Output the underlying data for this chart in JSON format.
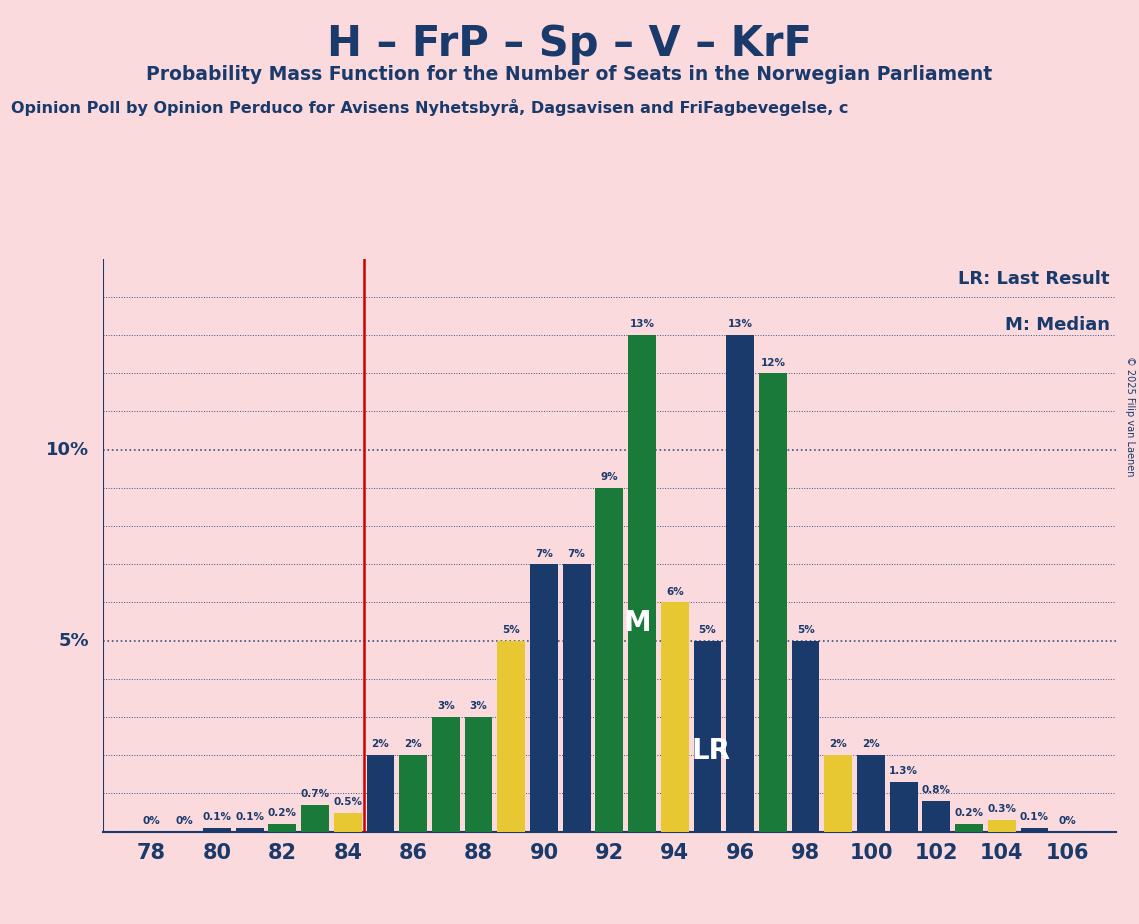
{
  "title": "H – FrP – Sp – V – KrF",
  "subtitle": "Probability Mass Function for the Number of Seats in the Norwegian Parliament",
  "source": "Opinion Poll by Opinion Perduco for Avisens Nyhetsbyrå, Dagsavisen and FriFagbevegelse, c",
  "copyright": "© 2025 Filip van Laenen",
  "background_color": "#FADADD",
  "bar_color_blue": "#1a3a6b",
  "bar_color_green": "#1a7a3a",
  "bar_color_yellow": "#e8c832",
  "lr_line_color": "#cc0000",
  "bars": [
    {
      "seat": 78,
      "prob": 0.0,
      "color": "blue"
    },
    {
      "seat": 79,
      "prob": 0.0,
      "color": "blue"
    },
    {
      "seat": 80,
      "prob": 0.1,
      "color": "blue"
    },
    {
      "seat": 81,
      "prob": 0.1,
      "color": "blue"
    },
    {
      "seat": 82,
      "prob": 0.2,
      "color": "green"
    },
    {
      "seat": 83,
      "prob": 0.7,
      "color": "green"
    },
    {
      "seat": 84,
      "prob": 0.5,
      "color": "yellow"
    },
    {
      "seat": 85,
      "prob": 2.0,
      "color": "blue"
    },
    {
      "seat": 86,
      "prob": 2.0,
      "color": "green"
    },
    {
      "seat": 87,
      "prob": 3.0,
      "color": "green"
    },
    {
      "seat": 88,
      "prob": 3.0,
      "color": "green"
    },
    {
      "seat": 89,
      "prob": 5.0,
      "color": "yellow"
    },
    {
      "seat": 90,
      "prob": 7.0,
      "color": "blue"
    },
    {
      "seat": 91,
      "prob": 7.0,
      "color": "blue"
    },
    {
      "seat": 92,
      "prob": 9.0,
      "color": "green"
    },
    {
      "seat": 93,
      "prob": 13.0,
      "color": "green"
    },
    {
      "seat": 94,
      "prob": 6.0,
      "color": "yellow"
    },
    {
      "seat": 95,
      "prob": 5.0,
      "color": "blue"
    },
    {
      "seat": 96,
      "prob": 13.0,
      "color": "blue"
    },
    {
      "seat": 97,
      "prob": 12.0,
      "color": "green"
    },
    {
      "seat": 98,
      "prob": 5.0,
      "color": "blue"
    },
    {
      "seat": 99,
      "prob": 2.0,
      "color": "yellow"
    },
    {
      "seat": 100,
      "prob": 2.0,
      "color": "blue"
    },
    {
      "seat": 101,
      "prob": 1.3,
      "color": "blue"
    },
    {
      "seat": 102,
      "prob": 0.8,
      "color": "blue"
    },
    {
      "seat": 103,
      "prob": 0.2,
      "color": "green"
    },
    {
      "seat": 104,
      "prob": 0.3,
      "color": "yellow"
    },
    {
      "seat": 105,
      "prob": 0.1,
      "color": "blue"
    },
    {
      "seat": 106,
      "prob": 0.0,
      "color": "blue"
    }
  ],
  "x_ticks": [
    78,
    80,
    82,
    84,
    86,
    88,
    90,
    92,
    94,
    96,
    98,
    100,
    102,
    104,
    106
  ],
  "xlim": [
    76.5,
    107.5
  ],
  "ylim": [
    0,
    15.0
  ],
  "median_seat": 93,
  "lr_seat": 95,
  "lr_line_x": 84.5,
  "label_fontsize": 7.5,
  "annotation_LR": "LR: Last Result",
  "annotation_M": "M: Median"
}
